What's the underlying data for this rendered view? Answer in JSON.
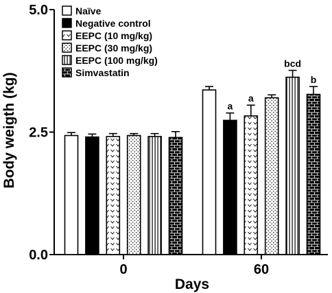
{
  "chart_data": {
    "type": "bar",
    "title": "",
    "xlabel": "Days",
    "ylabel": "Body weigth (kg)",
    "ylim": [
      0,
      5
    ],
    "yticks": [
      "0.0",
      "2.5",
      "5.0"
    ],
    "categories": [
      "0",
      "60"
    ],
    "legend_position": "top-left",
    "grid": false,
    "series": [
      {
        "name": "Naïve",
        "pattern": "white",
        "values": [
          2.43,
          3.36
        ],
        "errors": [
          0.06,
          0.07
        ],
        "labels": [
          "",
          ""
        ]
      },
      {
        "name": "Negative control",
        "pattern": "black",
        "values": [
          2.4,
          2.74
        ],
        "errors": [
          0.06,
          0.15
        ],
        "labels": [
          "",
          "a"
        ]
      },
      {
        "name": "EEPC (10 mg/kg)",
        "pattern": "chevron",
        "values": [
          2.41,
          2.83
        ],
        "errors": [
          0.06,
          0.22
        ],
        "labels": [
          "",
          "a"
        ]
      },
      {
        "name": "EEPC (30 mg/kg)",
        "pattern": "dots",
        "values": [
          2.43,
          3.2
        ],
        "errors": [
          0.04,
          0.06
        ],
        "labels": [
          "",
          ""
        ]
      },
      {
        "name": "EEPC (100 mg/kg)",
        "pattern": "vstripes",
        "values": [
          2.41,
          3.62
        ],
        "errors": [
          0.06,
          0.14
        ],
        "labels": [
          "",
          "bcd"
        ]
      },
      {
        "name": "Simvastatin",
        "pattern": "bricks",
        "values": [
          2.39,
          3.27
        ],
        "errors": [
          0.12,
          0.16
        ],
        "labels": [
          "",
          "b"
        ]
      }
    ]
  }
}
